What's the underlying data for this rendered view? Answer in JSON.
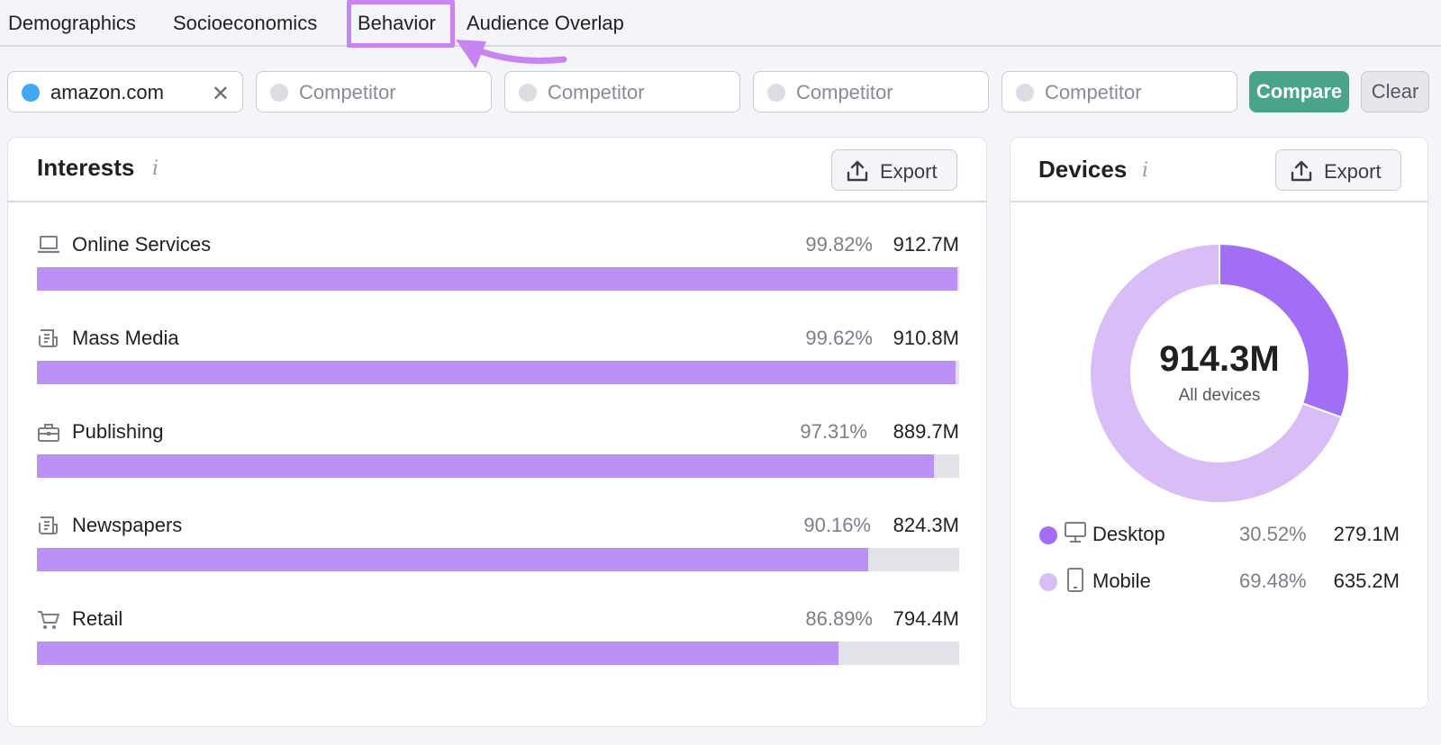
{
  "tabs": {
    "demographics": "Demographics",
    "socioeconomics": "Socioeconomics",
    "behavior": "Behavior",
    "audience_overlap": "Audience Overlap"
  },
  "compare_bar": {
    "domain": "amazon.com",
    "competitor_placeholder": "Competitor",
    "compare_label": "Compare",
    "clear_label": "Clear"
  },
  "interests": {
    "title": "Interests",
    "info": "i",
    "export_label": "Export",
    "rows": [
      {
        "label": "Online Services",
        "pct": "99.82%",
        "pct_value": 99.82,
        "value": "912.7M",
        "icon": "laptop-icon"
      },
      {
        "label": "Mass Media",
        "pct": "99.62%",
        "pct_value": 99.62,
        "value": "910.8M",
        "icon": "newspaper-icon"
      },
      {
        "label": "Publishing",
        "pct": "97.31%",
        "pct_value": 97.31,
        "value": "889.7M",
        "icon": "briefcase-icon"
      },
      {
        "label": "Newspapers",
        "pct": "90.16%",
        "pct_value": 90.16,
        "value": "824.3M",
        "icon": "newspaper-icon"
      },
      {
        "label": "Retail",
        "pct": "86.89%",
        "pct_value": 86.89,
        "value": "794.4M",
        "icon": "cart-icon"
      }
    ]
  },
  "devices": {
    "title": "Devices",
    "info": "i",
    "export_label": "Export",
    "total": "914.3M",
    "total_label": "All devices",
    "items": [
      {
        "label": "Desktop",
        "pct": "30.52%",
        "pct_value": 30.52,
        "value": "279.1M",
        "color": "#a16ef5"
      },
      {
        "label": "Mobile",
        "pct": "69.48%",
        "pct_value": 69.48,
        "value": "635.2M",
        "color": "#d8bdf7"
      }
    ]
  },
  "colors": {
    "bar_fill": "#bc91f5",
    "bar_track": "#e2e3e9",
    "highlight": "#c885f2",
    "compare_green": "#4aa489"
  }
}
